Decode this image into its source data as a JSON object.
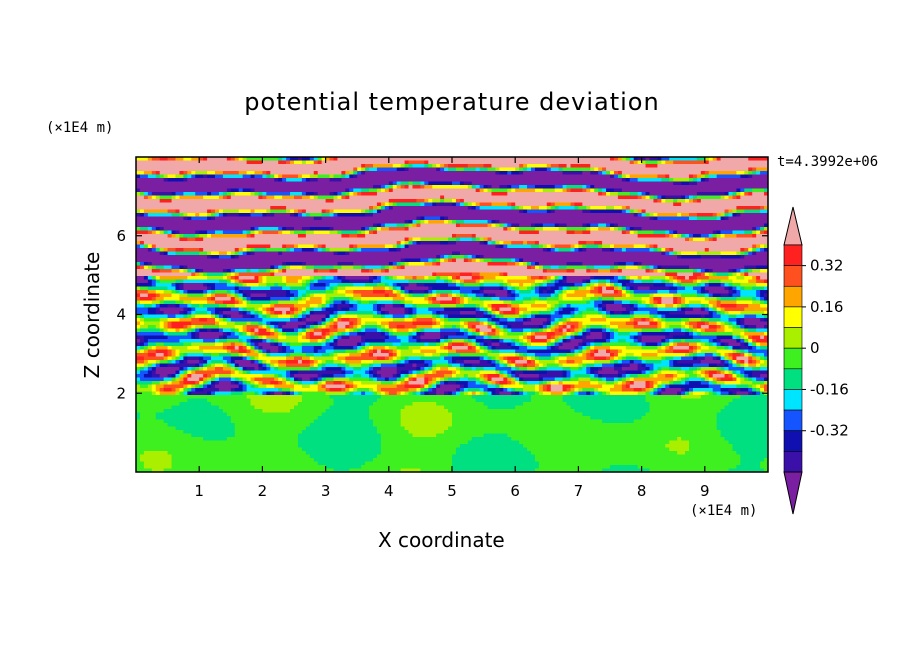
{
  "chart_data": {
    "type": "heatmap",
    "title": "potential temperature deviation",
    "xlabel": "X coordinate",
    "ylabel": "Z coordinate",
    "x_unit": "(×1E4 m)",
    "y_unit": "(×1E4 m)",
    "time_label": "t=4.3992e+06",
    "xlim": [
      0,
      10
    ],
    "ylim": [
      0,
      8
    ],
    "x_ticks": [
      "1",
      "2",
      "3",
      "4",
      "5",
      "6",
      "7",
      "8",
      "9"
    ],
    "y_ticks": [
      "2",
      "4",
      "6"
    ],
    "colorbar": {
      "levels": [
        -0.48,
        -0.4,
        -0.32,
        -0.24,
        -0.16,
        -0.08,
        0,
        0.08,
        0.16,
        0.24,
        0.32,
        0.4,
        0.48
      ],
      "colors": [
        "#7b1fa2",
        "#3a10a8",
        "#1010b0",
        "#1455ff",
        "#00e5ff",
        "#00e080",
        "#3ef020",
        "#aaee00",
        "#ffff00",
        "#ffa500",
        "#ff5020",
        "#ff2020",
        "#f0a8a8"
      ],
      "labels": [
        "0.32",
        "0.16",
        "0",
        "-0.16",
        "-0.32"
      ]
    }
  }
}
